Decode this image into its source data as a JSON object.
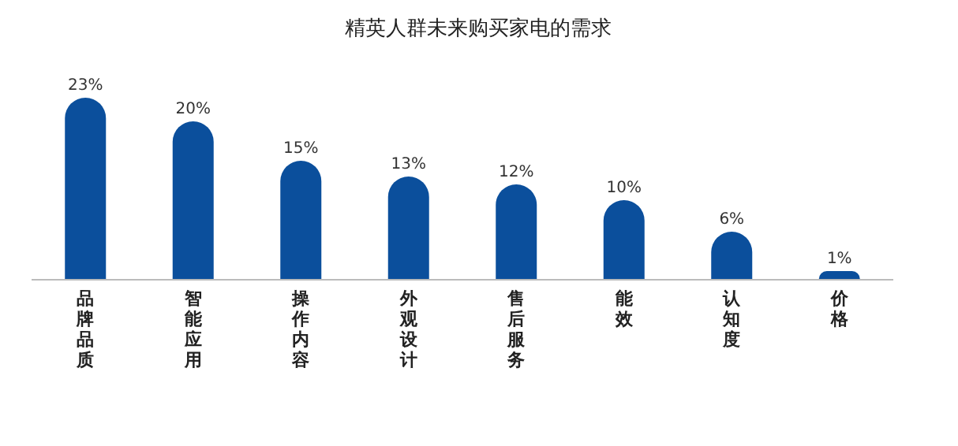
{
  "chart_data": {
    "type": "bar",
    "title": "精英人群未来购买家电的需求",
    "categories": [
      "品牌品质",
      "智能应用",
      "操作内容",
      "外观设计",
      "售后服务",
      "能效",
      "认知度",
      "价格"
    ],
    "values": [
      23,
      20,
      15,
      13,
      12,
      10,
      6,
      1
    ],
    "value_labels": [
      "23%",
      "20%",
      "15%",
      "13%",
      "12%",
      "10%",
      "6%",
      "1%"
    ],
    "color": "#0b4f9c"
  }
}
